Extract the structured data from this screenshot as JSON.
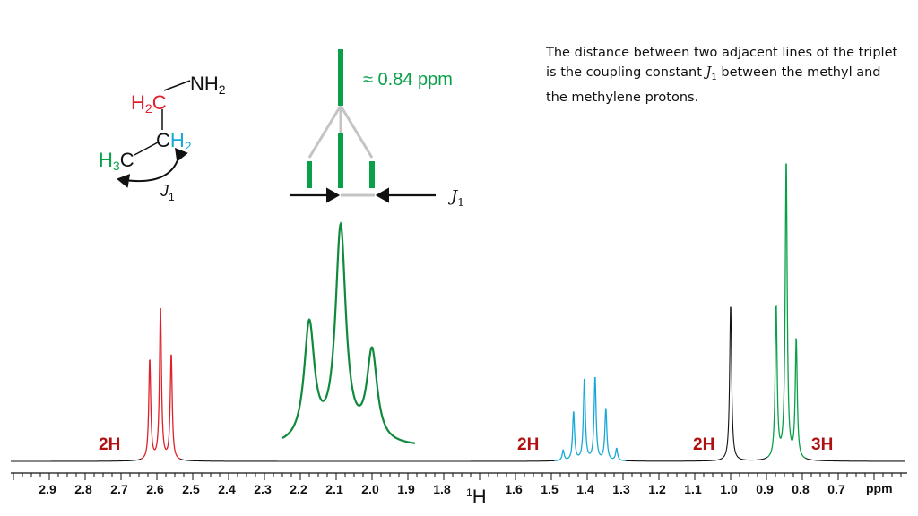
{
  "colors": {
    "red": "#e0202a",
    "green": "#0aa04a",
    "dark_green": "#0f8a3c",
    "blue": "#18a8d8",
    "black": "#111111",
    "gray": "#c4c4c4",
    "label": "#b01010"
  },
  "molecule": {
    "nh2": {
      "N": "N",
      "H": "H",
      "sub": "2"
    },
    "ch2_red": {
      "H": "H",
      "sub": "2",
      "C": "C"
    },
    "ch2_blue": {
      "C": "C",
      "H": "H",
      "sub": "2"
    },
    "ch3": {
      "H": "H",
      "sub": "3",
      "C": "C"
    },
    "coupling": {
      "J": "J",
      "sub": "1"
    }
  },
  "tree": {
    "spacing_label": "≈ 0.84 ppm",
    "coupling": {
      "J": "J",
      "sub": "1"
    }
  },
  "note": {
    "before": "The distance between two adjacent lines of the triplet is the coupling constant ",
    "J": "J",
    "sub": "1",
    "after": " between the methyl and the methylene protons."
  },
  "integrals": [
    "2H",
    "2H",
    "2H",
    "3H"
  ],
  "axis": {
    "ticks": [
      "2.9",
      "2.8",
      "2.7",
      "2.6",
      "2.5",
      "2.4",
      "2.3",
      "2.2",
      "2.1",
      "2.0",
      "1.9",
      "1.8",
      "1.6",
      "1.5",
      "1.4",
      "1.3",
      "1.2",
      "1.1",
      "1.0",
      "0.9",
      "0.8",
      "0.7"
    ],
    "nucleus_sup": "1",
    "nucleus": "H",
    "unit": "ppm"
  },
  "chart_data": {
    "type": "line",
    "xlabel": "¹H",
    "x_unit": "ppm",
    "xlim": [
      2.95,
      0.66
    ],
    "x_reversed": true,
    "series": [
      {
        "color": "#e0202a",
        "peaks": [
          {
            "ppm": 2.615,
            "rel": 0.58
          },
          {
            "ppm": 2.585,
            "rel": 0.88
          },
          {
            "ppm": 2.555,
            "rel": 0.61
          }
        ]
      },
      {
        "color": "#18a8d8",
        "peaks": [
          {
            "ppm": 1.462,
            "rel": 0.06
          },
          {
            "ppm": 1.433,
            "rel": 0.28
          },
          {
            "ppm": 1.403,
            "rel": 0.47
          },
          {
            "ppm": 1.373,
            "rel": 0.48
          },
          {
            "ppm": 1.343,
            "rel": 0.3
          },
          {
            "ppm": 1.313,
            "rel": 0.07
          }
        ]
      },
      {
        "color": "#111111",
        "peaks": [
          {
            "ppm": 0.995,
            "rel": 0.9
          }
        ]
      },
      {
        "color": "#0aa04a",
        "peaks": [
          {
            "ppm": 0.868,
            "rel": 0.88
          },
          {
            "ppm": 0.84,
            "rel": 1.72
          },
          {
            "ppm": 0.812,
            "rel": 0.69
          }
        ]
      }
    ],
    "inset": {
      "color": "#0f8a3c",
      "triplet_rel": [
        0.55,
        1.0,
        0.42
      ]
    }
  }
}
